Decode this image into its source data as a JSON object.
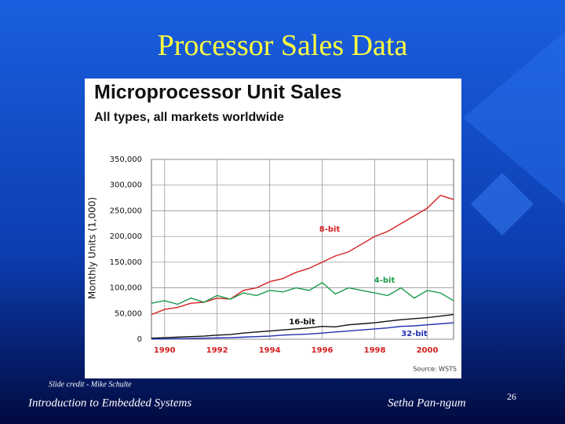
{
  "slide": {
    "title": "Processor Sales Data",
    "credit": "Slide credit - Mike Schulte",
    "footer_left": "Introduction to Embedded Systems",
    "footer_right": "Setha Pan-ngum",
    "page_number": "26"
  },
  "chart_data": {
    "type": "line",
    "title": "Microprocessor Unit Sales",
    "subtitle": "All types, all markets worldwide",
    "y_label": "Monthly Units (1,000)",
    "source": "Source: WSTS",
    "x": [
      1989.5,
      1990,
      1990.5,
      1991,
      1991.5,
      1992,
      1992.5,
      1993,
      1993.5,
      1994,
      1994.5,
      1995,
      1995.5,
      1996,
      1996.5,
      1997,
      1997.5,
      1998,
      1998.5,
      1999,
      1999.5,
      2000,
      2000.5,
      2001
    ],
    "series": [
      {
        "name": "8-bit",
        "color": "#d42020",
        "values": [
          48000,
          58000,
          62000,
          70000,
          72000,
          80000,
          78000,
          95000,
          100000,
          112000,
          118000,
          130000,
          138000,
          150000,
          162000,
          170000,
          185000,
          200000,
          210000,
          225000,
          240000,
          255000,
          280000,
          272000
        ]
      },
      {
        "name": "4-bit",
        "color": "#1a9a4a",
        "values": [
          70000,
          75000,
          68000,
          80000,
          72000,
          85000,
          78000,
          90000,
          85000,
          95000,
          92000,
          100000,
          95000,
          110000,
          88000,
          100000,
          95000,
          90000,
          85000,
          100000,
          80000,
          95000,
          90000,
          75000
        ]
      },
      {
        "name": "16-bit",
        "color": "#111111",
        "values": [
          2000,
          3000,
          4000,
          5000,
          6000,
          8000,
          9000,
          12000,
          14000,
          16000,
          18000,
          20000,
          22000,
          25000,
          24000,
          28000,
          30000,
          32000,
          35000,
          38000,
          40000,
          42000,
          45000,
          48000
        ]
      },
      {
        "name": "32-bit",
        "color": "#2030b0",
        "values": [
          500,
          700,
          1000,
          1500,
          2000,
          2500,
          3000,
          4000,
          5000,
          6000,
          8000,
          9000,
          10000,
          12000,
          14000,
          16000,
          18000,
          20000,
          22000,
          25000,
          26000,
          28000,
          30000,
          32000
        ]
      }
    ],
    "xlim": [
      1989.5,
      2001
    ],
    "xticks": [
      1990,
      1992,
      1994,
      1996,
      1998,
      2000
    ],
    "ylim": [
      0,
      350000
    ],
    "yticks": [
      0,
      {
        "value": 50000,
        "label": "50,000"
      },
      {
        "value": 100000,
        "label": "100,000"
      },
      {
        "value": 150000,
        "label": "150,000"
      },
      {
        "value": 200000,
        "label": "200,000"
      },
      {
        "value": 250000,
        "label": "250,000"
      },
      {
        "value": 300000,
        "label": "300,000"
      },
      {
        "value": 350000,
        "label": "350,000"
      }
    ],
    "grid": true
  }
}
